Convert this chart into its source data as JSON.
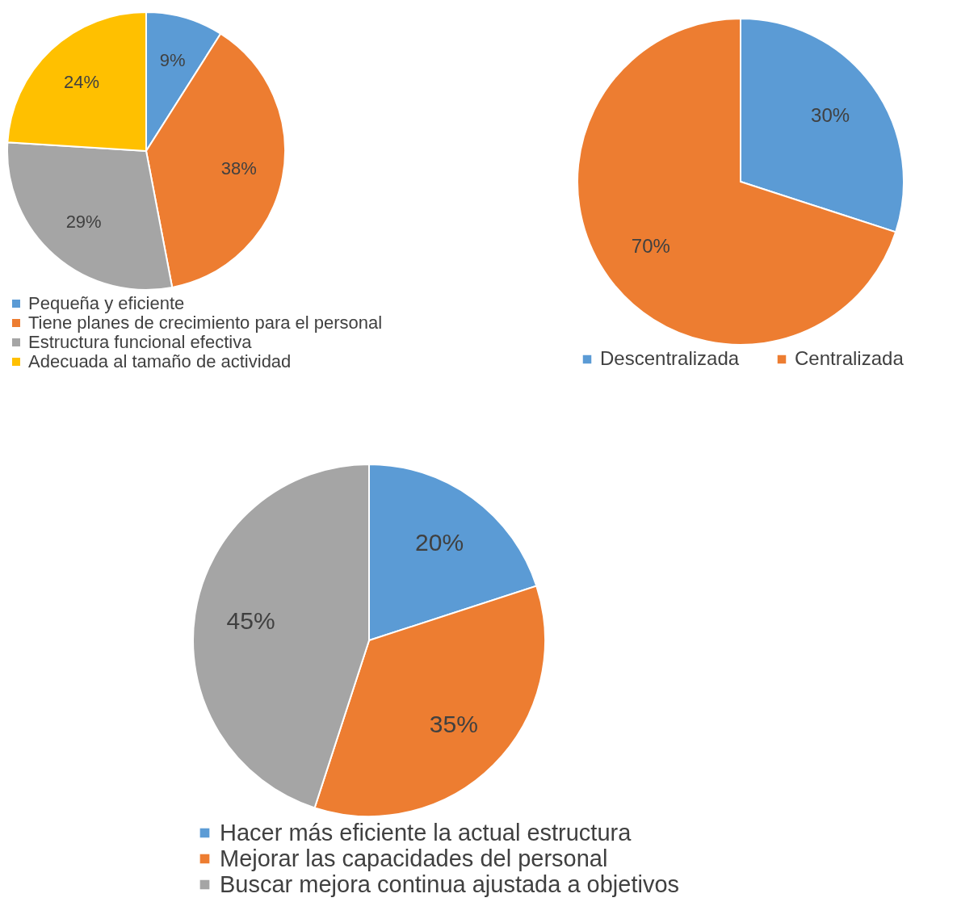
{
  "chart_data": [
    {
      "type": "pie",
      "categories": [
        "Pequeña y eficiente",
        "Tiene planes de crecimiento para el personal",
        "Estructura funcional efectiva",
        "Adecuada al tamaño de actividad"
      ],
      "values": [
        9,
        38,
        29,
        24
      ],
      "value_labels": [
        "9%",
        "38%",
        "29%",
        "24%"
      ],
      "colors": [
        "#5b9bd5",
        "#ed7d31",
        "#a5a5a5",
        "#ffc000"
      ],
      "legend": "bottom"
    },
    {
      "type": "pie",
      "categories": [
        "Descentralizada",
        "Centralizada"
      ],
      "values": [
        30,
        70
      ],
      "value_labels": [
        "30%",
        "70%"
      ],
      "colors": [
        "#5b9bd5",
        "#ed7d31"
      ],
      "legend": "bottom"
    },
    {
      "type": "pie",
      "categories": [
        "Hacer más eficiente la actual estructura",
        "Mejorar las capacidades del personal",
        "Buscar mejora continua ajustada a objetivos"
      ],
      "values": [
        20,
        35,
        45
      ],
      "value_labels": [
        "20%",
        "35%",
        "45%"
      ],
      "colors": [
        "#5b9bd5",
        "#ed7d31",
        "#a5a5a5"
      ],
      "legend": "bottom"
    }
  ]
}
